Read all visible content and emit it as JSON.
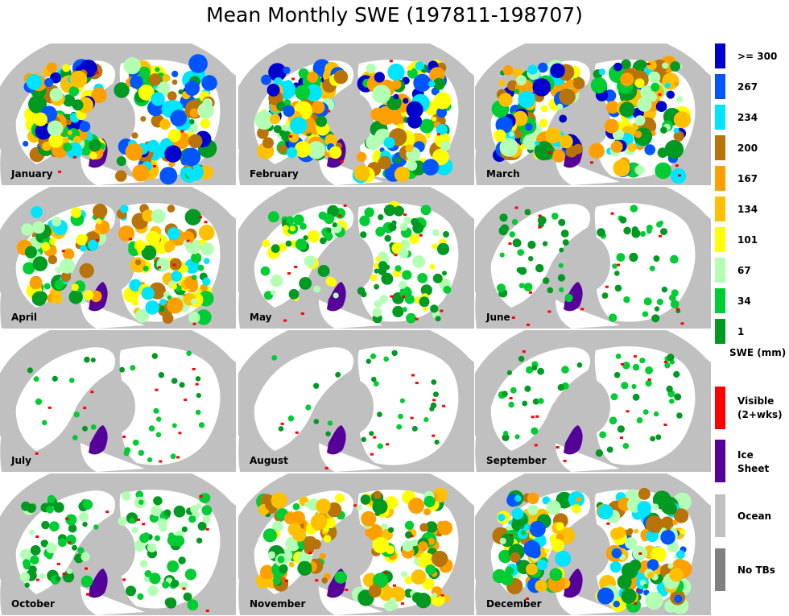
{
  "title": "Mean Monthly SWE (197811-198707)",
  "months": [
    "January",
    "February",
    "March",
    "April",
    "May",
    "June",
    "July",
    "August",
    "September",
    "October",
    "November",
    "December"
  ],
  "snow_extent": [
    1.0,
    1.0,
    1.0,
    0.85,
    0.55,
    0.3,
    0.12,
    0.1,
    0.22,
    0.5,
    0.82,
    0.95
  ],
  "legend": {
    "swe_classes": [
      {
        "label": ">= 300",
        "color": "#0000cc"
      },
      {
        "label": "267",
        "color": "#0055ff"
      },
      {
        "label": "234",
        "color": "#00e5ff"
      },
      {
        "label": "200",
        "color": "#b8730a"
      },
      {
        "label": "167",
        "color": "#ffa000"
      },
      {
        "label": "134",
        "color": "#ffc000"
      },
      {
        "label": "101",
        "color": "#ffff00"
      },
      {
        "label": "67",
        "color": "#b3ffb3"
      },
      {
        "label": "34",
        "color": "#00cc33"
      },
      {
        "label": "1",
        "color": "#009922"
      }
    ],
    "unit_label": "SWE (mm)",
    "visible_label_1": "Visible",
    "visible_label_2": "(2+wks)",
    "visible_color": "#ff0000",
    "ice_label_1": "Ice",
    "ice_label_2": "Sheet",
    "ice_color": "#550099",
    "ocean_label": "Ocean",
    "ocean_color": "#c0c0c0",
    "notb_label": "No TBs",
    "notb_color": "#808080"
  }
}
